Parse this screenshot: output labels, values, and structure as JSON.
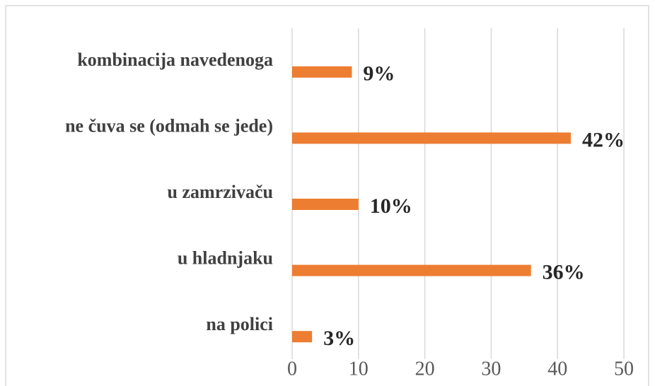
{
  "chart_data": {
    "type": "bar",
    "orientation": "horizontal",
    "categories": [
      "kombinacija navedenoga",
      "ne čuva se (odmah se jede)",
      "u zamrzivaču",
      "u hladnjaku",
      "na polici"
    ],
    "values": [
      9,
      42,
      10,
      36,
      3
    ],
    "value_labels": [
      "9%",
      "42%",
      "10%",
      "36%",
      "3%"
    ],
    "color": "#ed7d31",
    "xlim": [
      0,
      50
    ],
    "xticks": [
      0,
      10,
      20,
      30,
      40,
      50
    ],
    "grid": true
  }
}
